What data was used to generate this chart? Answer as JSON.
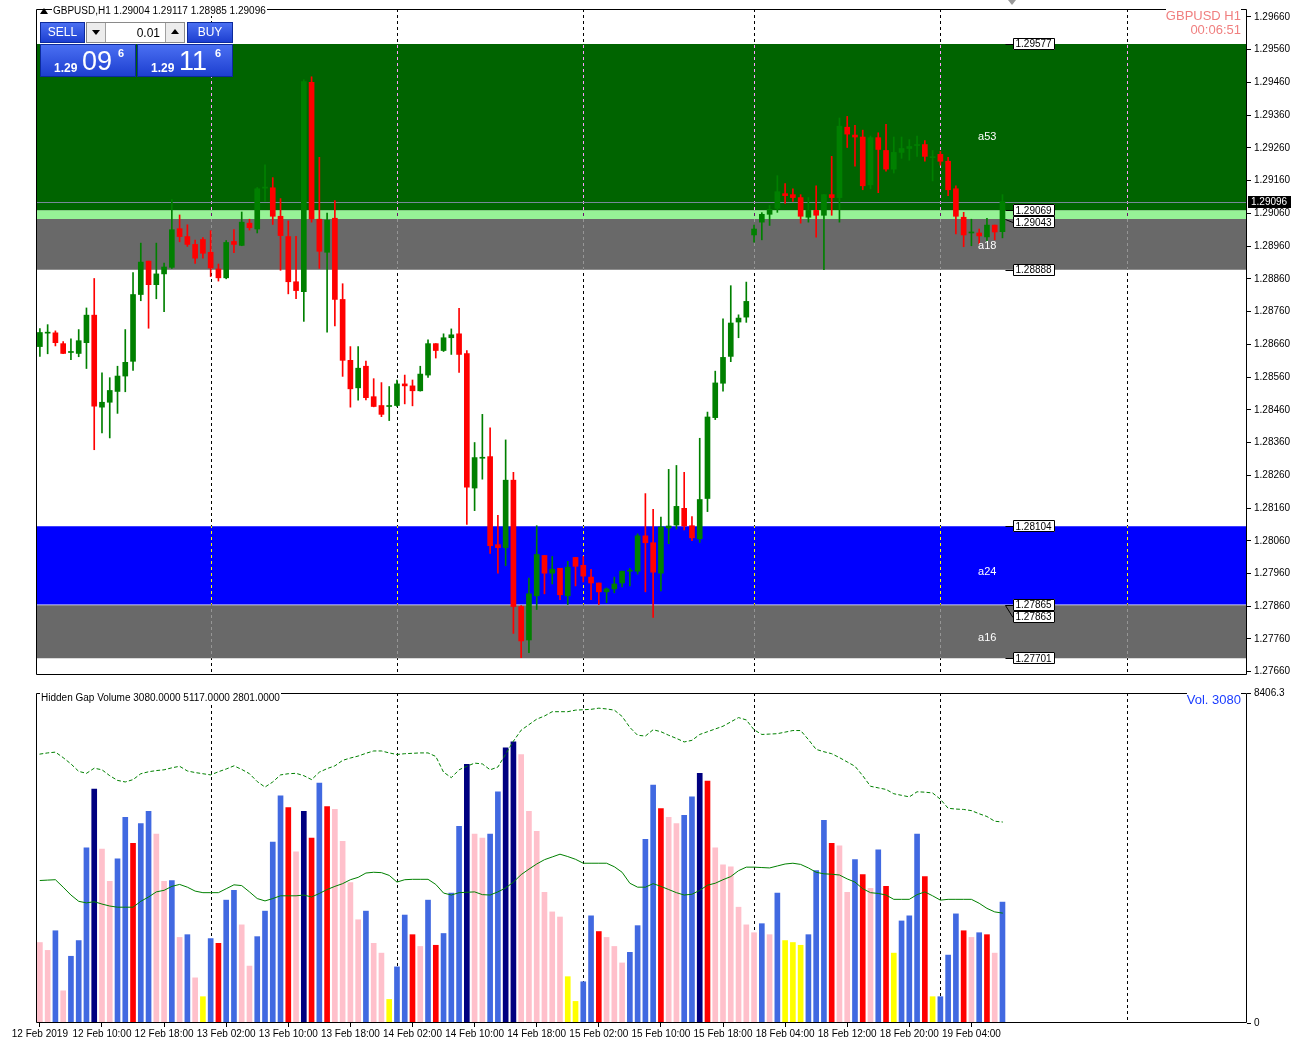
{
  "chart_data": [
    {
      "type": "candlestick",
      "title": "GBPUSD,H1 1.29004 1.29117 1.28985 1.29096",
      "categories": [
        null,
        null,
        null,
        null,
        null,
        null,
        null,
        null,
        null,
        null,
        null,
        null,
        null,
        null,
        null,
        null,
        null,
        null,
        null,
        null,
        null,
        null,
        null,
        null,
        null,
        null,
        null,
        null,
        null,
        null,
        null,
        null,
        null,
        null,
        null,
        null,
        null,
        null,
        null,
        null,
        null,
        null,
        null,
        null,
        null,
        null,
        null,
        null,
        null,
        null,
        null,
        null,
        null,
        null,
        null,
        null,
        null,
        null,
        null,
        null,
        null,
        null,
        null,
        null,
        null,
        null,
        null,
        null,
        null,
        null,
        null,
        null,
        null,
        null,
        null,
        null,
        null,
        null,
        null,
        null,
        null,
        null,
        null,
        null,
        null,
        null,
        null,
        null,
        null,
        null,
        null,
        null,
        null,
        null,
        null,
        null,
        null,
        null,
        null,
        null,
        null,
        null,
        null,
        null,
        null,
        null,
        null,
        null,
        null,
        null,
        null,
        null,
        null,
        null,
        null,
        null,
        null,
        null,
        null,
        null,
        null,
        null,
        null,
        null,
        null,
        null,
        null,
        null,
        null,
        null,
        null,
        null,
        null,
        null,
        null,
        null,
        null,
        null,
        null,
        null,
        null,
        null,
        null,
        null,
        null,
        null,
        null,
        null,
        null,
        null,
        null,
        null,
        null,
        null,
        null,
        null
      ],
      "ohlc": [
        [
          1.28653,
          1.28708,
          1.28623,
          1.28696
        ],
        [
          1.28694,
          1.2872,
          1.28631,
          1.28694
        ],
        [
          1.28695,
          1.28701,
          1.28655,
          1.28665
        ],
        [
          1.28662,
          1.28668,
          1.28631,
          1.28632
        ],
        [
          1.28635,
          1.28677,
          1.28613,
          1.28635
        ],
        [
          1.28632,
          1.28705,
          1.28622,
          1.28671
        ],
        [
          1.28665,
          1.28771,
          1.28586,
          1.28749
        ],
        [
          1.28749,
          1.28861,
          1.28338,
          1.28471
        ],
        [
          1.28468,
          1.28573,
          1.28389,
          1.28483
        ],
        [
          1.28483,
          1.28558,
          1.28374,
          1.28519
        ],
        [
          1.28516,
          1.28593,
          1.28449,
          1.28563
        ],
        [
          1.28563,
          1.28705,
          1.28515,
          1.28605
        ],
        [
          1.28608,
          1.28879,
          1.2858,
          1.28812
        ],
        [
          1.28812,
          1.28969,
          1.28793,
          1.28911
        ],
        [
          1.28914,
          1.28914,
          1.28709,
          1.28842
        ],
        [
          1.28842,
          1.28969,
          1.28799,
          1.28875
        ],
        [
          1.28875,
          1.28908,
          1.2876,
          1.28896
        ],
        [
          1.28895,
          1.29102,
          1.28892,
          1.2901
        ],
        [
          1.29013,
          1.29055,
          1.28973,
          1.28989
        ],
        [
          1.28989,
          1.29025,
          1.28959,
          1.28965
        ],
        [
          1.28965,
          1.28978,
          1.28907,
          1.28923
        ],
        [
          1.2898,
          1.28986,
          1.28923,
          1.28938
        ],
        [
          1.28941,
          1.29007,
          1.28867,
          1.28893
        ],
        [
          1.2889,
          1.28905,
          1.28853,
          1.28863
        ],
        [
          1.28863,
          1.28977,
          1.2886,
          1.28971
        ],
        [
          1.28974,
          1.2901,
          1.2894,
          1.28965
        ],
        [
          1.28962,
          1.29064,
          1.28961,
          1.29033
        ],
        [
          1.2903,
          1.29042,
          1.29009,
          1.29016
        ],
        [
          1.29012,
          1.29139,
          1.29,
          1.29135
        ],
        [
          1.29137,
          1.29208,
          1.29097,
          1.29137
        ],
        [
          1.29138,
          1.29169,
          1.29026,
          1.29051
        ],
        [
          1.29051,
          1.29105,
          1.28886,
          1.28992
        ],
        [
          1.28989,
          1.29037,
          1.28814,
          1.28851
        ],
        [
          1.28851,
          1.2899,
          1.28799,
          1.28824
        ],
        [
          1.28821,
          1.29468,
          1.2873,
          1.29462
        ],
        [
          1.2946,
          1.29477,
          1.29033,
          1.29043
        ],
        [
          1.29042,
          1.29231,
          1.28892,
          1.28944
        ],
        [
          1.28941,
          1.29061,
          1.28697,
          1.29039
        ],
        [
          1.29045,
          1.29099,
          1.28716,
          1.28797
        ],
        [
          1.28797,
          1.28845,
          1.28562,
          1.28611
        ],
        [
          1.28611,
          1.28653,
          1.28468,
          1.28524
        ],
        [
          1.28527,
          1.28653,
          1.28489,
          1.28587
        ],
        [
          1.28593,
          1.28609,
          1.2849,
          1.28497
        ],
        [
          1.285,
          1.28555,
          1.28469,
          1.2847
        ],
        [
          1.28473,
          1.28543,
          1.28439,
          1.28446
        ],
        [
          1.2847,
          1.28531,
          1.28427,
          1.2847
        ],
        [
          1.28473,
          1.28551,
          1.2847,
          1.28539
        ],
        [
          1.28539,
          1.28566,
          1.28478,
          1.28533
        ],
        [
          1.28533,
          1.28551,
          1.28472,
          1.28518
        ],
        [
          1.28518,
          1.28593,
          1.28517,
          1.28569
        ],
        [
          1.28566,
          1.28674,
          1.28559,
          1.28662
        ],
        [
          1.28662,
          1.28662,
          1.28618,
          1.28641
        ],
        [
          1.28641,
          1.28692,
          1.28638,
          1.2868
        ],
        [
          1.2868,
          1.28707,
          1.28629,
          1.28689
        ],
        [
          1.28692,
          1.2877,
          1.28574,
          1.28629
        ],
        [
          1.28632,
          1.28641,
          1.2811,
          1.28224
        ],
        [
          1.28221,
          1.2836,
          1.28152,
          1.28314
        ],
        [
          1.28312,
          1.28446,
          1.28248,
          1.28312
        ],
        [
          1.28317,
          1.28405,
          1.28021,
          1.28045
        ],
        [
          1.28048,
          1.28138,
          1.27961,
          1.28039
        ],
        [
          1.28039,
          1.28368,
          1.27984,
          1.28245
        ],
        [
          1.28245,
          1.28269,
          1.27777,
          1.27859
        ],
        [
          1.27859,
          1.27862,
          1.27703,
          1.27754
        ],
        [
          1.27757,
          1.27946,
          1.27718,
          1.27898
        ],
        [
          1.27892,
          1.28106,
          1.2785,
          1.28018
        ],
        [
          1.28015,
          1.28015,
          1.27898,
          1.27961
        ],
        [
          1.27961,
          1.28012,
          1.27928,
          1.27973
        ],
        [
          1.27976,
          1.27976,
          1.2788,
          1.27895
        ],
        [
          1.27892,
          1.27997,
          1.27865,
          1.27979
        ],
        [
          1.28009,
          1.28009,
          1.27922,
          1.27982
        ],
        [
          1.27985,
          1.28012,
          1.27934,
          1.27952
        ],
        [
          1.27949,
          1.27973,
          1.2788,
          1.27931
        ],
        [
          1.27931,
          1.27931,
          1.27865,
          1.27904
        ],
        [
          1.27904,
          1.27916,
          1.27871,
          1.27913
        ],
        [
          1.27913,
          1.27949,
          1.27901,
          1.27928
        ],
        [
          1.27931,
          1.27967,
          1.27919,
          1.27967
        ],
        [
          1.27967,
          1.27976,
          1.27922,
          1.27967
        ],
        [
          1.27967,
          1.28081,
          1.27958,
          1.28075
        ],
        [
          1.28075,
          1.28204,
          1.27904,
          1.28054
        ],
        [
          1.28054,
          1.28156,
          1.27826,
          1.27964
        ],
        [
          1.27961,
          1.28132,
          1.27907,
          1.28102
        ],
        [
          1.28099,
          1.28278,
          1.28051,
          1.28105
        ],
        [
          1.28108,
          1.2829,
          1.28096,
          1.28165
        ],
        [
          1.28159,
          1.28269,
          1.28093,
          1.28105
        ],
        [
          1.28106,
          1.28134,
          1.2806,
          1.28069
        ],
        [
          1.28066,
          1.28373,
          1.28055,
          1.28186
        ],
        [
          1.28189,
          1.28453,
          1.28149,
          1.28438
        ],
        [
          1.28436,
          1.28578,
          1.2843,
          1.28542
        ],
        [
          1.28541,
          1.28738,
          1.28517,
          1.2862
        ],
        [
          1.28623,
          1.28839,
          1.28607,
          1.28725
        ],
        [
          1.28728,
          1.2875,
          1.2868,
          1.2874
        ],
        [
          1.28743,
          1.2885,
          1.28727,
          1.28791
        ],
        [
          1.28994,
          1.29024,
          1.28972,
          1.29012
        ],
        [
          1.29033,
          1.29062,
          1.28979,
          1.29057
        ],
        [
          1.29057,
          1.29084,
          1.29023,
          1.29072
        ],
        [
          1.29075,
          1.29175,
          1.29063,
          1.29126
        ],
        [
          1.2912,
          1.29151,
          1.2909,
          1.29114
        ],
        [
          1.29117,
          1.29135,
          1.29096,
          1.29108
        ],
        [
          1.29108,
          1.29117,
          1.2903,
          1.29051
        ],
        [
          1.29048,
          1.29108,
          1.29033,
          1.29069
        ],
        [
          1.29069,
          1.29144,
          1.28987,
          1.29054
        ],
        [
          1.29054,
          1.29117,
          1.28888,
          1.29117
        ],
        [
          1.29117,
          1.29234,
          1.29054,
          1.29108
        ],
        [
          1.29108,
          1.29351,
          1.29033,
          1.29326
        ],
        [
          1.29323,
          1.29356,
          1.29261,
          1.29302
        ],
        [
          1.29299,
          1.29329,
          1.29204,
          1.29293
        ],
        [
          1.29293,
          1.29314,
          1.29132,
          1.29144
        ],
        [
          1.29147,
          1.29296,
          1.29135,
          1.29291
        ],
        [
          1.29291,
          1.29306,
          1.29123,
          1.29255
        ],
        [
          1.29252,
          1.29332,
          1.29189,
          1.29195
        ],
        [
          1.29195,
          1.29293,
          1.29183,
          1.29246
        ],
        [
          1.29246,
          1.29293,
          1.29228,
          1.29258
        ],
        [
          1.29258,
          1.29285,
          1.29222,
          1.29264
        ],
        [
          1.29267,
          1.29296,
          1.29234,
          1.29267
        ],
        [
          1.2927,
          1.29282,
          1.29219,
          1.29234
        ],
        [
          1.2923,
          1.29252,
          1.29159,
          1.2923
        ],
        [
          1.2924,
          1.29249,
          1.29207,
          1.29219
        ],
        [
          1.29219,
          1.29231,
          1.29114,
          1.29132
        ],
        [
          1.29135,
          1.29144,
          1.28997,
          1.29051
        ],
        [
          1.29048,
          1.29063,
          1.28958,
          1.28994
        ],
        [
          1.29,
          1.29042,
          1.28961,
          1.29
        ],
        [
          1.29,
          1.29012,
          1.28967,
          1.28991
        ],
        [
          1.28988,
          1.29045,
          1.28973,
          1.29024
        ],
        [
          1.29024,
          1.29024,
          1.28979,
          1.29003
        ],
        [
          1.29004,
          1.29117,
          1.28985,
          1.29096
        ],
        null,
        null,
        null,
        null,
        null,
        null,
        null,
        null,
        null,
        null,
        null,
        null,
        null,
        null,
        null,
        null,
        null,
        null,
        null,
        null,
        null,
        null,
        null,
        null,
        null,
        null,
        null,
        null,
        null,
        null,
        null
      ],
      "colors": [
        "#008000",
        "#008000",
        "#ff0000",
        "#ff0000",
        "#008000",
        "#008000",
        "#008000",
        "#ff0000",
        "#008000",
        "#008000",
        "#008000",
        "#008000",
        "#008000",
        "#008000",
        "#ff0000",
        "#008000",
        "#008000",
        "#008000",
        "#ff0000",
        "#ff0000",
        "#ff0000",
        "#ff0000",
        "#ff0000",
        "#ff0000",
        "#008000",
        "#ff0000",
        "#008000",
        "#ff0000",
        "#008000",
        "#008000",
        "#ff0000",
        "#ff0000",
        "#ff0000",
        "#ff0000",
        "#008000",
        "#ff0000",
        "#ff0000",
        "#008000",
        "#ff0000",
        "#ff0000",
        "#ff0000",
        "#008000",
        "#ff0000",
        "#ff0000",
        "#ff0000",
        "#008000",
        "#008000",
        "#ff0000",
        "#ff0000",
        "#008000",
        "#008000",
        "#ff0000",
        "#008000",
        "#008000",
        "#ff0000",
        "#ff0000",
        "#008000",
        "#008000",
        "#ff0000",
        "#ff0000",
        "#008000",
        "#ff0000",
        "#ff0000",
        "#008000",
        "#008000",
        "#ff0000",
        "#008000",
        "#ff0000",
        "#008000",
        "#ff0000",
        "#ff0000",
        "#ff0000",
        "#ff0000",
        "#008000",
        "#008000",
        "#008000",
        "#008000",
        "#008000",
        "#ff0000",
        "#ff0000",
        "#008000",
        "#008000",
        "#008000",
        "#ff0000",
        "#ff0000",
        "#008000",
        "#008000",
        "#008000",
        "#008000",
        "#008000",
        "#008000",
        "#008000",
        "#008000",
        "#008000",
        "#008000",
        "#008000",
        "#ff0000",
        "#ff0000",
        "#ff0000",
        "#008000",
        "#ff0000",
        "#008000",
        "#ff0000",
        "#008000",
        "#ff0000",
        "#ff0000",
        "#ff0000",
        "#008000",
        "#ff0000",
        "#ff0000",
        "#008000",
        "#008000",
        "#008000",
        "#008000",
        "#ff0000",
        "#008000",
        "#ff0000",
        "#ff0000",
        "#ff0000",
        "#ff0000",
        "#008000",
        "#ff0000",
        "#008000",
        "#ff0000",
        "#008000",
        null,
        null,
        null,
        null,
        null,
        null,
        null,
        null,
        null,
        null,
        null,
        null,
        null,
        null,
        null,
        null,
        null,
        null,
        null,
        null,
        null,
        null,
        null,
        null,
        null,
        null,
        null,
        null,
        null,
        null,
        null
      ],
      "ylim": [
        1.2765,
        1.29684
      ],
      "yticks": [
        {
          "value": 1.2966,
          "label": "1.29660"
        },
        {
          "value": 1.2956,
          "label": "1.29560"
        },
        {
          "value": 1.2946,
          "label": "1.29460"
        },
        {
          "value": 1.2936,
          "label": "1.29360"
        },
        {
          "value": 1.2926,
          "label": "1.29260"
        },
        {
          "value": 1.2916,
          "label": "1.29160"
        },
        {
          "value": 1.2906,
          "label": "1.29060"
        },
        {
          "value": 1.2896,
          "label": "1.28960"
        },
        {
          "value": 1.2886,
          "label": "1.28860"
        },
        {
          "value": 1.2876,
          "label": "1.28760"
        },
        {
          "value": 1.2866,
          "label": "1.28660"
        },
        {
          "value": 1.2856,
          "label": "1.28560"
        },
        {
          "value": 1.2846,
          "label": "1.28460"
        },
        {
          "value": 1.2836,
          "label": "1.28360"
        },
        {
          "value": 1.2826,
          "label": "1.28260"
        },
        {
          "value": 1.2816,
          "label": "1.28160"
        },
        {
          "value": 1.2806,
          "label": "1.28060"
        },
        {
          "value": 1.2796,
          "label": "1.27960"
        },
        {
          "value": 1.2786,
          "label": "1.27860"
        },
        {
          "value": 1.2776,
          "label": "1.27760"
        },
        {
          "value": 1.2766,
          "label": "1.27660"
        }
      ],
      "tick_labels": "y",
      "bands": [
        {
          "axis": "y",
          "from": 1.29043,
          "to": 1.29577,
          "label": "a53",
          "color": "#006400"
        },
        {
          "axis": "y",
          "from": 1.28888,
          "to": 1.29069,
          "label": "a18",
          "color": "#696969"
        },
        {
          "axis": "y",
          "from": 1.29043,
          "to": 1.29069,
          "color": "#96f296"
        },
        {
          "axis": "y",
          "from": 1.27865,
          "to": 1.28104,
          "label": "a24",
          "color": "#0000ff"
        },
        {
          "axis": "y",
          "from": 1.27701,
          "to": 1.27863,
          "label": "a16",
          "color": "#696969"
        }
      ],
      "ref_lines": [
        {
          "axis": "y",
          "value": 1.29096,
          "label": "1.29096",
          "color": "#778899"
        }
      ],
      "annotations": [
        "SELL",
        "0.01",
        "BUY",
        "1.29",
        "09",
        "6",
        "1.29",
        "11",
        "6",
        "GBPUSD H1",
        "00:06:51",
        {
          "text": "1.29577",
          "y": 1.29577
        },
        {
          "text": "1.29069",
          "y": 1.29069
        },
        {
          "text": "1.29043",
          "y": 1.29043
        },
        {
          "text": "1.28888",
          "y": 1.28888
        },
        {
          "text": "1.28104",
          "y": 1.28104
        },
        {
          "text": "1.27865",
          "y": 1.27865
        },
        {
          "text": "1.27863",
          "y": 1.27863
        },
        {
          "text": "1.27701",
          "y": 1.27701
        }
      ]
    },
    {
      "type": "bar",
      "title": "Hidden Gap Volume 3080.0000 5117.0000 2801.0000",
      "categories": [
        "12 Feb 2019",
        null,
        null,
        null,
        null,
        null,
        null,
        null,
        "12 Feb 10:00",
        null,
        null,
        null,
        null,
        null,
        null,
        null,
        "12 Feb 18:00",
        null,
        null,
        null,
        null,
        null,
        null,
        null,
        "13 Feb 02:00",
        null,
        null,
        null,
        null,
        null,
        null,
        null,
        "13 Feb 10:00",
        null,
        null,
        null,
        null,
        null,
        null,
        null,
        "13 Feb 18:00",
        null,
        null,
        null,
        null,
        null,
        null,
        null,
        "14 Feb 02:00",
        null,
        null,
        null,
        null,
        null,
        null,
        null,
        "14 Feb 10:00",
        null,
        null,
        null,
        null,
        null,
        null,
        null,
        "14 Feb 18:00",
        null,
        null,
        null,
        null,
        null,
        null,
        null,
        "15 Feb 02:00",
        null,
        null,
        null,
        null,
        null,
        null,
        null,
        "15 Feb 10:00",
        null,
        null,
        null,
        null,
        null,
        null,
        null,
        "15 Feb 18:00",
        null,
        null,
        null,
        null,
        null,
        null,
        null,
        "18 Feb 04:00",
        null,
        null,
        null,
        null,
        null,
        null,
        null,
        "18 Feb 12:00",
        null,
        null,
        null,
        null,
        null,
        null,
        null,
        "18 Feb 20:00",
        null,
        null,
        null,
        null,
        null,
        null,
        null,
        "19 Feb 04:00",
        null,
        null,
        null,
        null,
        null,
        null,
        null,
        null,
        null,
        null,
        null,
        null,
        null,
        null,
        null,
        null,
        null,
        null,
        null,
        null,
        null,
        null,
        null,
        null,
        null,
        null,
        null,
        null,
        null,
        null,
        null,
        null,
        null,
        null,
        null
      ],
      "series": [
        {
          "type": "bar",
          "values": [
            2050,
            1850,
            2350,
            820,
            1700,
            2100,
            4460,
            5960,
            4430,
            3610,
            4180,
            5240,
            4580,
            5080,
            5390,
            4810,
            3610,
            3630,
            2180,
            2250,
            1150,
            670,
            2150,
            2030,
            3130,
            3380,
            2500,
            1450,
            2200,
            2850,
            4610,
            5790,
            5490,
            4360,
            5390,
            4710,
            6110,
            5510,
            5440,
            4630,
            3580,
            2630,
            2850,
            2030,
            1780,
            600,
            1430,
            2750,
            2250,
            1950,
            3130,
            1980,
            2280,
            3310,
            5010,
            6590,
            4810,
            4710,
            4810,
            5890,
            7010,
            7160,
            6840,
            5390,
            4880,
            3330,
            2830,
            2700,
            1180,
            550,
            1050,
            2730,
            2330,
            2180,
            1950,
            1530,
            1800,
            2480,
            4680,
            6060,
            5460,
            5240,
            5080,
            5290,
            5760,
            6360,
            6160,
            4460,
            4030,
            3980,
            2950,
            2500,
            2300,
            2530,
            2250,
            3310,
            2100,
            2050,
            1980,
            2250,
            3880,
            5160,
            4580,
            4510,
            3330,
            4160,
            3780,
            3430,
            4410,
            3480,
            1780,
            2600,
            2730,
            4810,
            3730,
            670,
            670,
            1730,
            2780,
            2350,
            2180,
            2300,
            2250,
            1780,
            3080,
            null,
            null,
            null,
            null,
            null,
            null,
            null,
            null,
            null,
            null,
            null,
            null,
            null,
            null,
            null,
            null,
            null,
            null,
            null,
            null,
            null,
            null,
            null,
            null,
            null,
            null,
            null,
            null,
            null,
            null,
            null
          ],
          "colors": [
            "#ffc0cb",
            "#ffc0cb",
            "#4169e1",
            "#ffc0cb",
            "#4169e1",
            "#4169e1",
            "#4169e1",
            "#000080",
            "#ffc0cb",
            "#ffc0cb",
            "#4169e1",
            "#4169e1",
            "#ff0000",
            "#4169e1",
            "#4169e1",
            "#ffc0cb",
            "#ffc0cb",
            "#4169e1",
            "#ffc0cb",
            "#4169e1",
            "#ffc0cb",
            "#ffff00",
            "#4169e1",
            "#ff0000",
            "#4169e1",
            "#4169e1",
            "#ffc0cb",
            "#ffc0cb",
            "#4169e1",
            "#4169e1",
            "#4169e1",
            "#4169e1",
            "#ff0000",
            "#ffc0cb",
            "#000080",
            "#ff0000",
            "#4169e1",
            "#ff0000",
            "#ffc0cb",
            "#ffc0cb",
            "#ffc0cb",
            "#ffc0cb",
            "#4169e1",
            "#ffc0cb",
            "#ffc0cb",
            "#ffff00",
            "#4169e1",
            "#4169e1",
            "#ff0000",
            "#ffc0cb",
            "#4169e1",
            "#ff0000",
            "#4169e1",
            "#4169e1",
            "#4169e1",
            "#000080",
            "#ffc0cb",
            "#ffc0cb",
            "#4169e1",
            "#4169e1",
            "#000080",
            "#000080",
            "#ffc0cb",
            "#ffc0cb",
            "#ffc0cb",
            "#ffc0cb",
            "#ffc0cb",
            "#ffc0cb",
            "#ffff00",
            "#ffff00",
            "#4169e1",
            "#4169e1",
            "#ff0000",
            "#ffc0cb",
            "#ffc0cb",
            "#ffc0cb",
            "#4169e1",
            "#4169e1",
            "#4169e1",
            "#4169e1",
            "#ff0000",
            "#ffc0cb",
            "#ffc0cb",
            "#4169e1",
            "#4169e1",
            "#000080",
            "#ff0000",
            "#ffc0cb",
            "#ffc0cb",
            "#ffc0cb",
            "#ffc0cb",
            "#ffc0cb",
            "#ffc0cb",
            "#4169e1",
            "#ffc0cb",
            "#4169e1",
            "#ffff00",
            "#ffff00",
            "#ffff00",
            "#4169e1",
            "#4169e1",
            "#4169e1",
            "#ff0000",
            "#ffc0cb",
            "#ffc0cb",
            "#4169e1",
            "#ff0000",
            "#ffc0cb",
            "#4169e1",
            "#ff0000",
            "#ffff00",
            "#4169e1",
            "#4169e1",
            "#4169e1",
            "#ff0000",
            "#ffff00",
            "#4169e1",
            "#4169e1",
            "#4169e1",
            "#ff0000",
            "#ffc0cb",
            "#4169e1",
            "#ff0000",
            "#ffc0cb",
            "#4169e1",
            null,
            null,
            null,
            null,
            null,
            null,
            null,
            null,
            null,
            null,
            null,
            null,
            null,
            null,
            null,
            null,
            null,
            null,
            null,
            null,
            null,
            null,
            null,
            null,
            null,
            null,
            null,
            null,
            null,
            null,
            null
          ]
        },
        {
          "type": "line",
          "color": "#008000",
          "line_style": "dashed",
          "values": [
            6850,
            6880,
            6900,
            6760,
            6600,
            6410,
            6360,
            6490,
            6450,
            6300,
            6180,
            6140,
            6200,
            6350,
            6400,
            6430,
            6450,
            6500,
            6540,
            6420,
            6380,
            6350,
            6320,
            6400,
            6470,
            6550,
            6460,
            6350,
            6150,
            6010,
            6140,
            6320,
            6350,
            6360,
            6300,
            6200,
            6390,
            6480,
            6550,
            6690,
            6750,
            6800,
            6870,
            6930,
            6930,
            6880,
            6840,
            6860,
            6870,
            6880,
            6880,
            6790,
            6390,
            6250,
            6450,
            6540,
            6620,
            6600,
            6450,
            6520,
            6850,
            7180,
            7460,
            7600,
            7740,
            7820,
            7930,
            7930,
            7930,
            7970,
            7980,
            7990,
            8020,
            8000,
            7970,
            7810,
            7530,
            7330,
            7310,
            7470,
            7420,
            7330,
            7250,
            7160,
            7200,
            7350,
            7420,
            7490,
            7560,
            7670,
            7780,
            7720,
            7470,
            7350,
            7360,
            7370,
            7410,
            7450,
            7450,
            7220,
            6970,
            6910,
            6860,
            6760,
            6650,
            6540,
            6300,
            6030,
            5990,
            5950,
            5840,
            5800,
            5760,
            5890,
            5880,
            5860,
            5700,
            5470,
            5450,
            5440,
            5410,
            5330,
            5260,
            5140,
            5120,
            null,
            null,
            null,
            null,
            null,
            null,
            null,
            null,
            null,
            null,
            null,
            null,
            null,
            null,
            null,
            null,
            null,
            null,
            null,
            null,
            null,
            null,
            null,
            null,
            null,
            null,
            null,
            null,
            null,
            null,
            null
          ]
        },
        {
          "type": "line",
          "color": "#008000",
          "values": [
            3630,
            3640,
            3650,
            3460,
            3260,
            3100,
            3060,
            3090,
            3030,
            2980,
            2950,
            2950,
            2950,
            3100,
            3210,
            3340,
            3380,
            3480,
            3530,
            3460,
            3360,
            3320,
            3320,
            3320,
            3420,
            3520,
            3500,
            3340,
            3170,
            3110,
            3170,
            3240,
            3240,
            3240,
            3260,
            3210,
            3300,
            3400,
            3480,
            3550,
            3650,
            3710,
            3820,
            3840,
            3830,
            3760,
            3590,
            3650,
            3660,
            3660,
            3660,
            3530,
            3310,
            3260,
            3320,
            3330,
            3340,
            3270,
            3260,
            3340,
            3440,
            3590,
            3780,
            3920,
            4050,
            4160,
            4230,
            4300,
            4240,
            4170,
            4070,
            4070,
            4070,
            4070,
            3980,
            3840,
            3560,
            3460,
            3460,
            3550,
            3480,
            3400,
            3320,
            3260,
            3280,
            3380,
            3510,
            3560,
            3650,
            3730,
            3880,
            3970,
            3970,
            3960,
            3950,
            4000,
            4050,
            4070,
            4040,
            3950,
            3840,
            3800,
            3790,
            3770,
            3670,
            3590,
            3420,
            3320,
            3300,
            3260,
            3150,
            3150,
            3150,
            3270,
            3340,
            3240,
            3130,
            3150,
            3150,
            3150,
            3150,
            3050,
            2920,
            2830,
            2800,
            null,
            null,
            null,
            null,
            null,
            null,
            null,
            null,
            null,
            null,
            null,
            null,
            null,
            null,
            null,
            null,
            null,
            null,
            null,
            null,
            null,
            null,
            null,
            null,
            null,
            null,
            null,
            null,
            null,
            null,
            null
          ]
        }
      ],
      "ylim": [
        0,
        8406.3
      ],
      "yticks": [
        0,
        8406.3
      ],
      "annotations": [
        "Vol. 3080"
      ]
    }
  ]
}
